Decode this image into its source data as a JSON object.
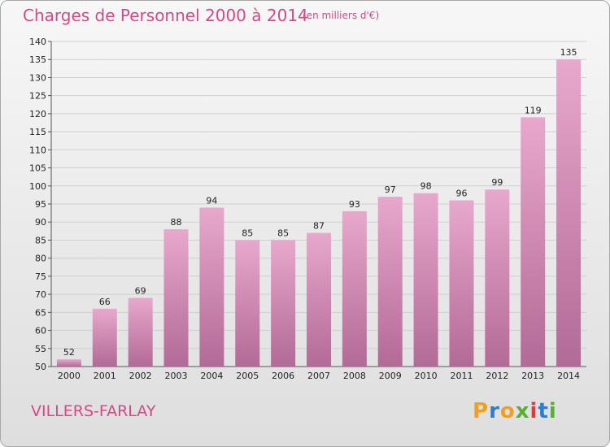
{
  "header": {
    "title": "Charges de Personnel 2000 à 2014",
    "subtitle": "(en milliers d'€)"
  },
  "footer": {
    "commune": "VILLERS-FARLAY",
    "logo": "Proxiti"
  },
  "colors": {
    "title": "#d24a86",
    "bar_light": "#e8a8cc",
    "bar_dark": "#b26a96",
    "logo_letters": [
      "#f0a020",
      "#2a7fd0",
      "#f0a020",
      "#59b030",
      "#e03a3a",
      "#2a7fd0",
      "#59b030"
    ]
  },
  "chart_data": {
    "type": "bar",
    "title": "Charges de Personnel 2000 à 2014",
    "subtitle": "(en milliers d'€)",
    "categories": [
      "2000",
      "2001",
      "2002",
      "2003",
      "2004",
      "2005",
      "2006",
      "2007",
      "2008",
      "2009",
      "2010",
      "2011",
      "2012",
      "2013",
      "2014"
    ],
    "values": [
      52,
      66,
      69,
      88,
      94,
      85,
      85,
      87,
      93,
      97,
      98,
      96,
      99,
      119,
      135
    ],
    "ylim": [
      50,
      140
    ],
    "yticks": [
      50,
      55,
      60,
      65,
      70,
      75,
      80,
      85,
      90,
      95,
      100,
      105,
      110,
      115,
      120,
      125,
      130,
      135,
      140
    ],
    "grid": "horizontal",
    "data_labels": true
  }
}
